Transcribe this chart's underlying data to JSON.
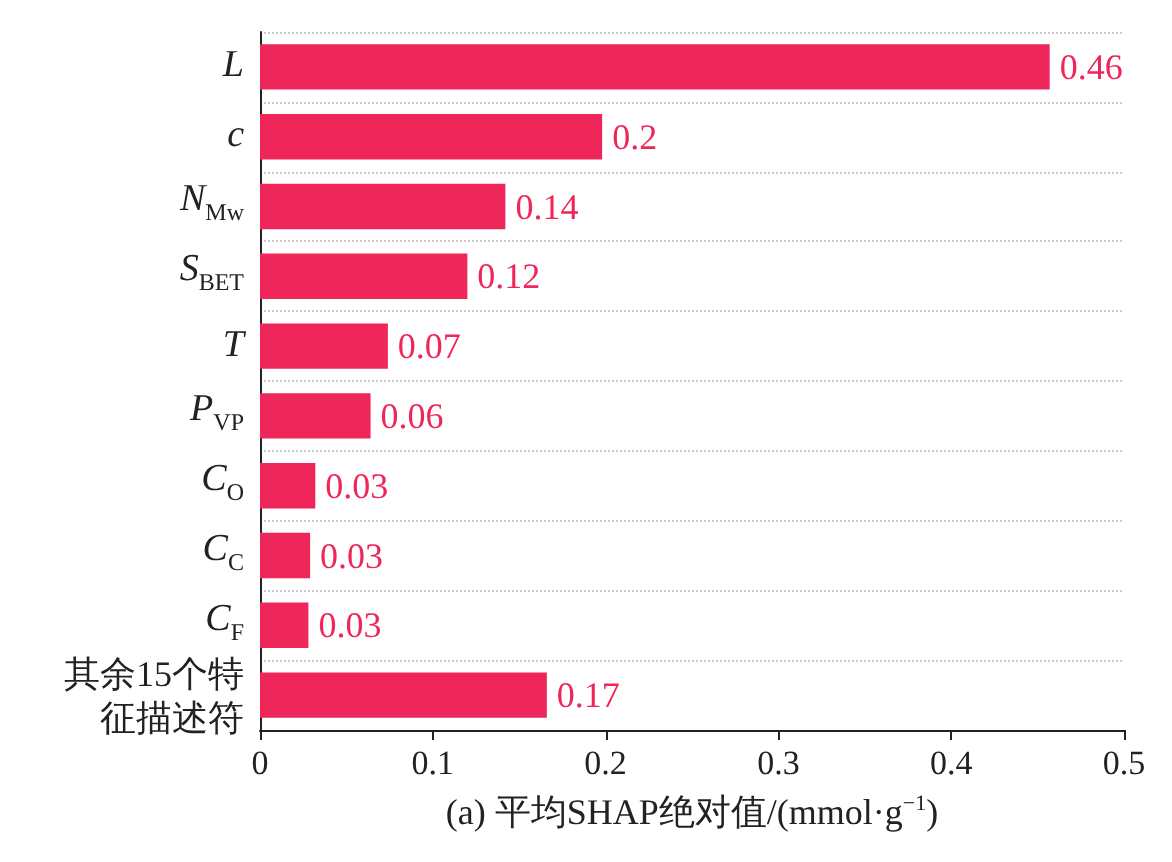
{
  "chart_data": {
    "type": "bar",
    "orientation": "horizontal",
    "xlabel": "(a) 平均SHAP绝对值/(mmol·g$^{−1}$)",
    "categories": [
      "L",
      "c",
      "N$_{Mw}$",
      "S$_{BET}$",
      "T",
      "P$_{VP}$",
      "C$_{O}$",
      "C$_{C}$",
      "C$_{F}$",
      "其余15个特征描述符"
    ],
    "values": [
      0.457,
      0.198,
      0.142,
      0.12,
      0.074,
      0.064,
      0.032,
      0.029,
      0.028,
      0.166
    ],
    "value_labels": [
      "0.46",
      "0.2",
      "0.14",
      "0.12",
      "0.07",
      "0.06",
      "0.03",
      "0.03",
      "0.03",
      "0.17"
    ],
    "color": "#ef2659",
    "xlim": [
      0,
      0.5
    ],
    "xticks": [
      0,
      0.1,
      0.2,
      0.3,
      0.4,
      0.5
    ],
    "grid": "y"
  }
}
